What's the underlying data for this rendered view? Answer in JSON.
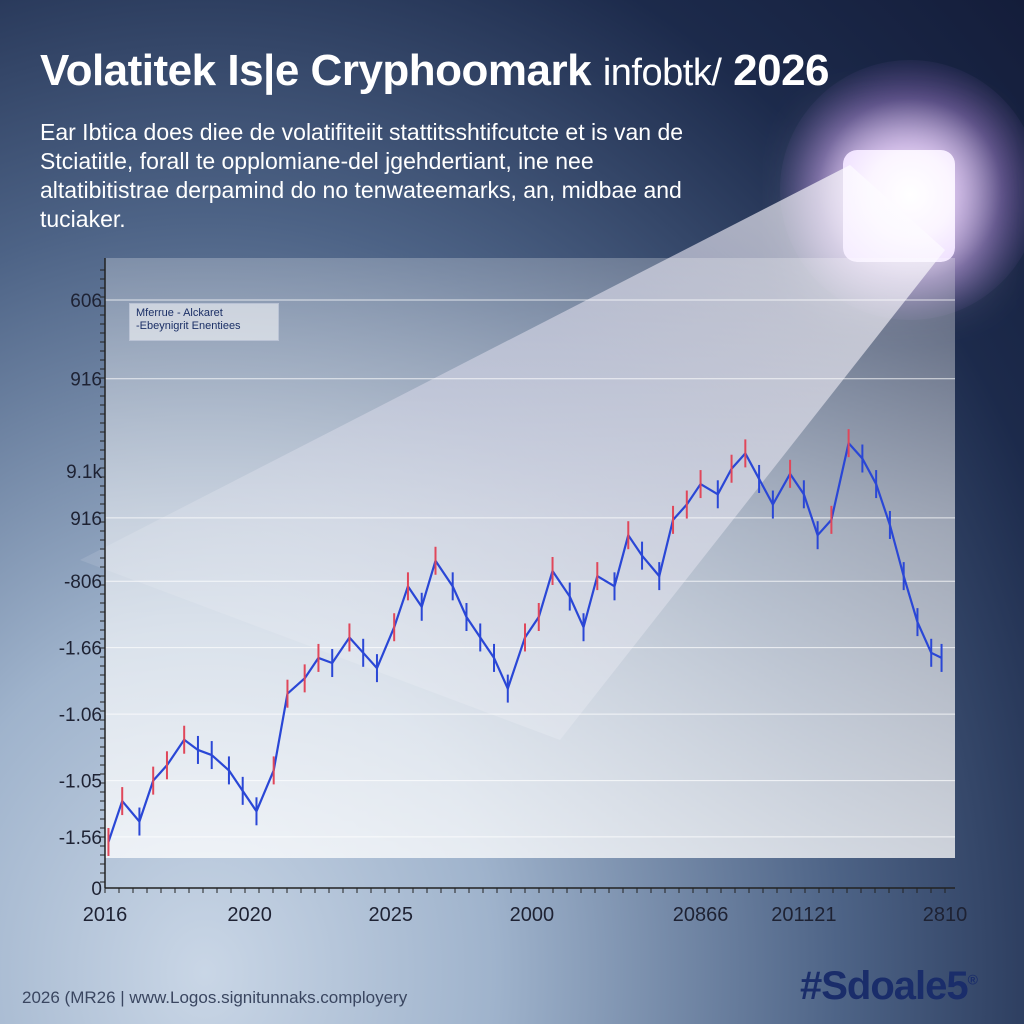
{
  "header": {
    "title": "Volatitek Is|e Cryphoomark",
    "title_suffix_a": "infobtk/",
    "title_suffix_b": "2026",
    "subtitle": "Ear Ibtica does diee de volatifiteiit stattitsshtifcutcte et is van de Stciatitle, forall te opplomiane-del jgehdertiant, ine nee altatibitistrae derpamind do no tenwateemarks, an, midbae and tuciaker."
  },
  "legend": {
    "line1": "Mferrue  -  Alckaret",
    "line2": "-Ebeynigrit Enentiees"
  },
  "footer": {
    "left": "2026 (MR26 | www.Logos.signitunnaks.comployery",
    "brand": "#Sdoale5",
    "brand_mark": "®"
  },
  "colors": {
    "up": "#e0475a",
    "down": "#2a47d6",
    "grid": "#ffffff",
    "axis": "#222222"
  },
  "chart_data": {
    "type": "line",
    "title": "Volatitek Is|e Cryphoomark infobtk/ 2026",
    "xlabel": "",
    "ylabel": "",
    "x_tick_labels": [
      "2016",
      "2020",
      "2025",
      "2000",
      "20866",
      "201121",
      "2810"
    ],
    "x_ticks_at": [
      2016,
      2020.2,
      2024.3,
      2028.4,
      2033.3,
      2036.3,
      2040.4
    ],
    "y_tick_labels": [
      "0",
      "-1.56",
      "-1.05",
      "-1.06",
      "-1.66",
      "-806",
      "916",
      "9.1k",
      "916",
      "606"
    ],
    "y_ticks_at": [
      0,
      0.5,
      1.05,
      1.7,
      2.35,
      3.0,
      3.62,
      4.08,
      4.98,
      5.75
    ],
    "y_gridlines_at": [
      0.5,
      1.05,
      1.7,
      2.35,
      3.0,
      3.62,
      4.98,
      5.75
    ],
    "ylim": [
      0,
      6.1
    ],
    "xlim": [
      2016,
      2040.4
    ],
    "grid": true,
    "legend_position": "top-left",
    "series": [
      {
        "x": [
          2016.1,
          2016.5,
          2017.0,
          2017.4,
          2017.8,
          2018.3,
          2018.7,
          2019.1,
          2019.6,
          2020.0,
          2020.4,
          2020.9,
          2021.3,
          2021.8,
          2022.2,
          2022.6,
          2023.1,
          2023.5,
          2023.9,
          2024.4,
          2024.8,
          2025.2,
          2025.6,
          2026.1,
          2026.5,
          2026.9,
          2027.3,
          2027.7,
          2028.2,
          2028.6,
          2029.0,
          2029.5,
          2029.9,
          2030.3,
          2030.8,
          2031.2,
          2031.6,
          2032.1,
          2032.5,
          2032.9,
          2033.3,
          2033.8,
          2034.2,
          2034.6,
          2035.0,
          2035.4,
          2035.9,
          2036.3,
          2036.7,
          2037.1,
          2037.6,
          2038.0,
          2038.4,
          2038.8,
          2039.2,
          2039.6,
          2040.0,
          2040.3
        ],
        "values": [
          0.45,
          0.85,
          0.65,
          1.05,
          1.2,
          1.45,
          1.35,
          1.3,
          1.15,
          0.95,
          0.75,
          1.15,
          1.9,
          2.05,
          2.25,
          2.2,
          2.45,
          2.3,
          2.15,
          2.55,
          2.95,
          2.75,
          3.2,
          2.95,
          2.65,
          2.45,
          2.25,
          1.95,
          2.45,
          2.65,
          3.1,
          2.85,
          2.55,
          3.05,
          2.95,
          3.45,
          3.25,
          3.05,
          3.6,
          3.75,
          3.95,
          3.85,
          4.1,
          4.25,
          4.0,
          3.75,
          4.05,
          3.85,
          3.45,
          3.6,
          4.35,
          4.2,
          3.95,
          3.55,
          3.05,
          2.6,
          2.3,
          2.25
        ]
      }
    ]
  }
}
